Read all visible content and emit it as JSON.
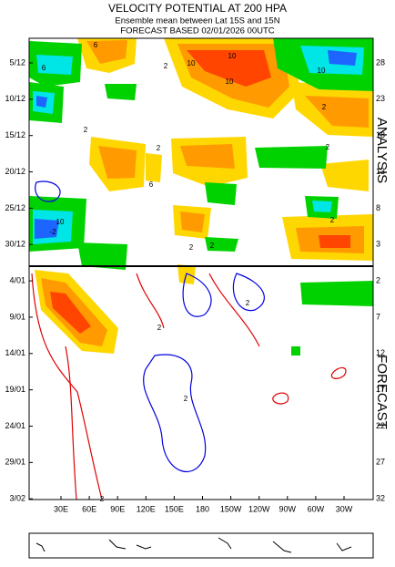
{
  "chart_data": {
    "type": "hovmoller",
    "title": "VELOCITY POTENTIAL AT 200 HPA",
    "subtitle": [
      "Ensemble mean between  Lat 15S and 15N",
      "FORECAST  BASED 02/01/2026 00UTC"
    ],
    "y_labels": [
      "5/12",
      "10/12",
      "15/12",
      "20/12",
      "25/12",
      "30/12",
      "4/01",
      "9/01",
      "14/01",
      "19/01",
      "24/01",
      "29/01",
      "3/02"
    ],
    "right_labels": [
      28,
      23,
      18,
      13,
      8,
      3,
      2,
      7,
      12,
      17,
      22,
      27,
      32
    ],
    "x_labels": [
      "30E",
      "60E",
      "90E",
      "120E",
      "150E",
      "180",
      "150W",
      "120W",
      "90W",
      "60W",
      "30W"
    ],
    "side_labels": [
      "ANALYSIS",
      "FORECAST"
    ],
    "contour_labels": [
      "6",
      "10",
      "6",
      "10",
      "10",
      "10",
      "2",
      "2",
      "6",
      "2",
      "-2",
      "2",
      "2",
      "2",
      "10",
      "2",
      "2",
      "2",
      "2",
      "2",
      "2"
    ]
  }
}
